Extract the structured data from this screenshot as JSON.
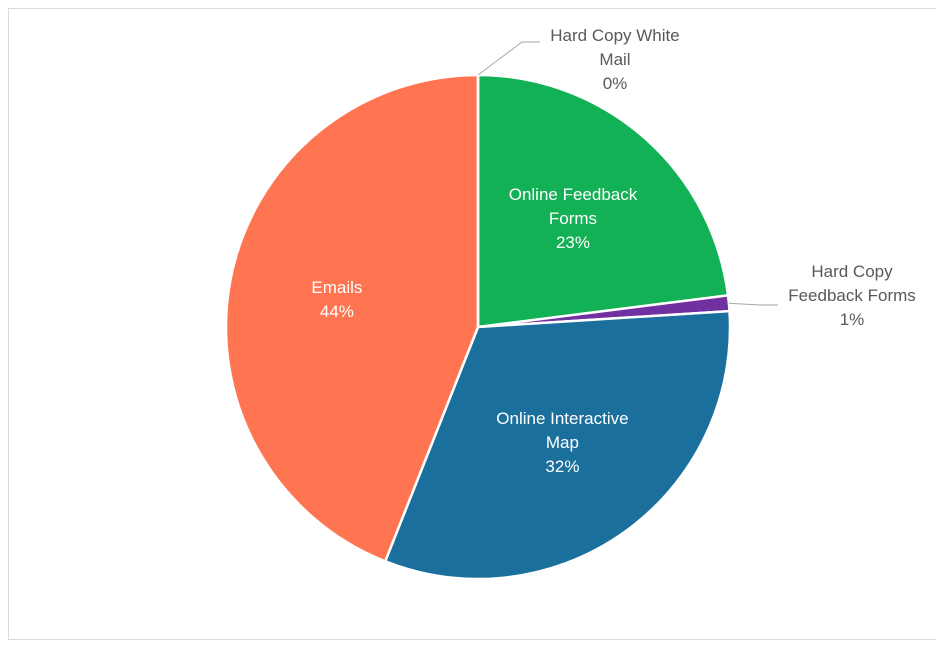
{
  "chart_data": {
    "type": "pie",
    "categories": [
      "Online Feedback Forms",
      "Hard Copy Feedback Forms",
      "Online Interactive Map",
      "Emails",
      "Hard Copy White Mail"
    ],
    "values": [
      23,
      1,
      32,
      44,
      0
    ],
    "value_labels": [
      "23%",
      "1%",
      "32%",
      "44%",
      "0%"
    ],
    "colors": [
      "#13b155",
      "#7030a0",
      "#1a6f9c",
      "#ff7551",
      "#a5a5a5"
    ]
  }
}
